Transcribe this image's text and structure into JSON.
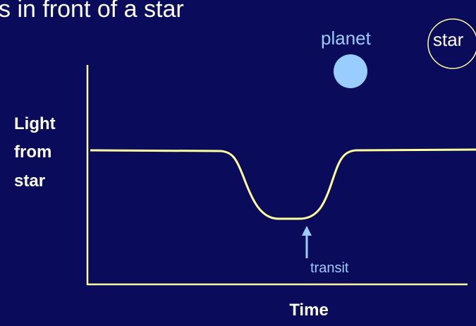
{
  "title": "s in front of a star",
  "planet_label": "planet",
  "star_label": "star",
  "y_axis_label": [
    "Light",
    "from",
    "star"
  ],
  "transit_label": "transit",
  "x_axis_label": "Time"
}
